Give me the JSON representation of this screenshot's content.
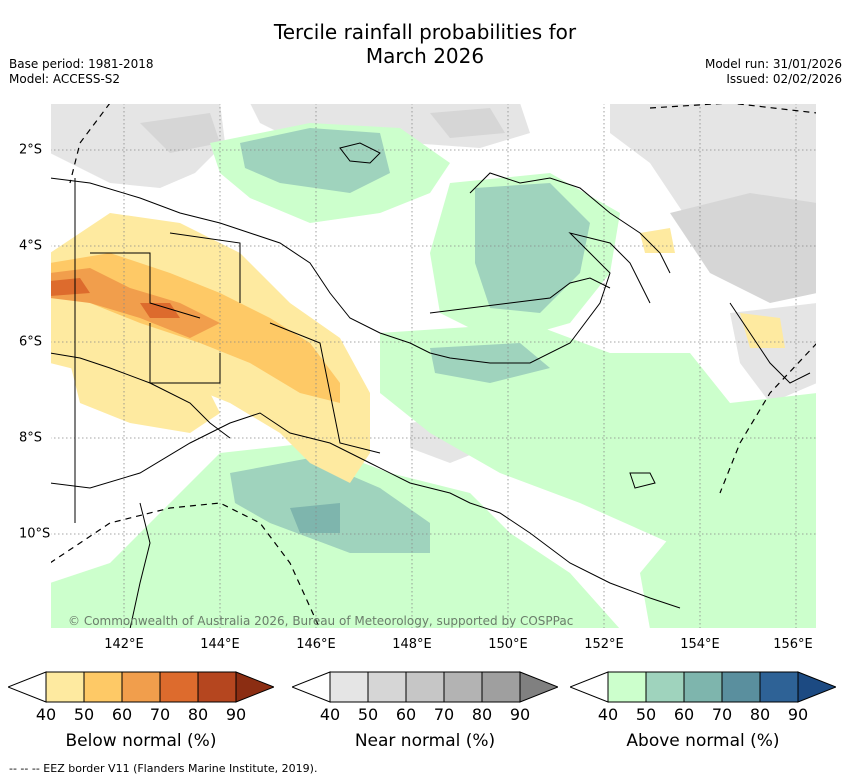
{
  "header": {
    "title_line1": "Tercile rainfall probabilities for",
    "title_line2": "March 2026",
    "base_period": "Base period: 1981-2018",
    "model": "Model: ACCESS-S2",
    "model_run": "Model run: 31/01/2026",
    "issued": "Issued: 02/02/2026"
  },
  "map": {
    "x_ticks": [
      "142°E",
      "144°E",
      "146°E",
      "148°E",
      "150°E",
      "152°E",
      "154°E",
      "156°E"
    ],
    "y_ticks": [
      "2°S",
      "4°S",
      "6°S",
      "8°S",
      "10°S"
    ],
    "lon_range": [
      140.0,
      156.5
    ],
    "lat_range": [
      -11.8,
      -1.0
    ],
    "copyright": "© Commonwealth of Australia 2026, Bureau of Meteorology, supported by COSPPac",
    "colors": {
      "grid": "#888888",
      "coast": "#000000"
    }
  },
  "legends": [
    {
      "title": "Below normal (%)",
      "ticks": [
        "40",
        "50",
        "60",
        "70",
        "80",
        "90"
      ],
      "colors": [
        "#ffffff",
        "#feeaa0",
        "#fec966",
        "#f19e4c",
        "#dd6b2d",
        "#b5461f",
        "#8b2d12"
      ]
    },
    {
      "title": "Near normal (%)",
      "ticks": [
        "40",
        "50",
        "60",
        "70",
        "80",
        "90"
      ],
      "colors": [
        "#ffffff",
        "#e5e5e5",
        "#d6d6d6",
        "#c6c6c6",
        "#b3b3b3",
        "#9f9f9f",
        "#808080"
      ]
    },
    {
      "title": "Above normal (%)",
      "ticks": [
        "40",
        "50",
        "60",
        "70",
        "80",
        "90"
      ],
      "colors": [
        "#ffffff",
        "#ccffcc",
        "#9fd3bd",
        "#7eb5ad",
        "#5a8f9e",
        "#2e6296",
        "#1c4a82"
      ]
    }
  ],
  "footer": {
    "eez_note": "--  --  -- EEZ border V11 (Flanders Marine Institute, 2019)."
  }
}
